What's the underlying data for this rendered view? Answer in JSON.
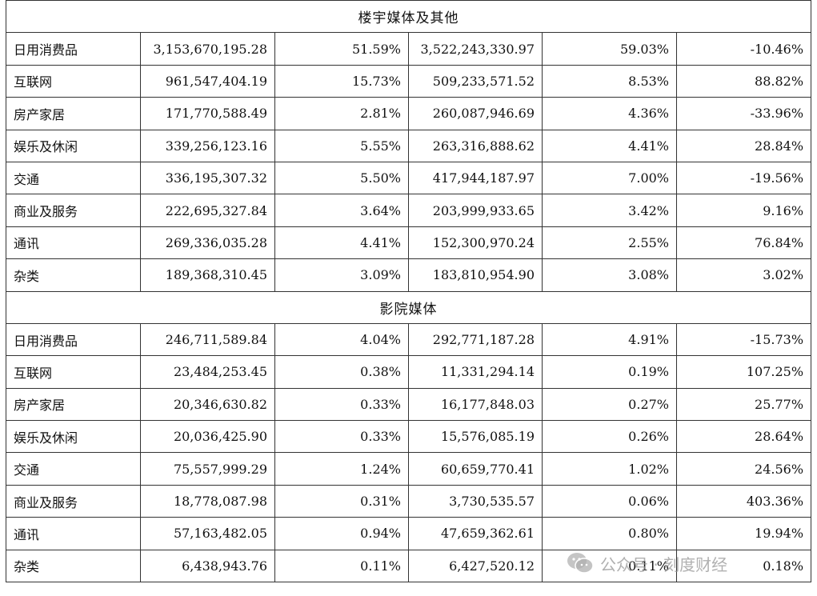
{
  "sections": [
    {
      "title": "楼宇媒体及其他",
      "rows": [
        {
          "category": "日用消费品",
          "amount_current": "3,153,670,195.28",
          "share_current": "51.59%",
          "amount_prior": "3,522,243,330.97",
          "share_prior": "59.03%",
          "change": "-10.46%"
        },
        {
          "category": "互联网",
          "amount_current": "961,547,404.19",
          "share_current": "15.73%",
          "amount_prior": "509,233,571.52",
          "share_prior": "8.53%",
          "change": "88.82%"
        },
        {
          "category": "房产家居",
          "amount_current": "171,770,588.49",
          "share_current": "2.81%",
          "amount_prior": "260,087,946.69",
          "share_prior": "4.36%",
          "change": "-33.96%"
        },
        {
          "category": "娱乐及休闲",
          "amount_current": "339,256,123.16",
          "share_current": "5.55%",
          "amount_prior": "263,316,888.62",
          "share_prior": "4.41%",
          "change": "28.84%"
        },
        {
          "category": "交通",
          "amount_current": "336,195,307.32",
          "share_current": "5.50%",
          "amount_prior": "417,944,187.97",
          "share_prior": "7.00%",
          "change": "-19.56%"
        },
        {
          "category": "商业及服务",
          "amount_current": "222,695,327.84",
          "share_current": "3.64%",
          "amount_prior": "203,999,933.65",
          "share_prior": "3.42%",
          "change": "9.16%"
        },
        {
          "category": "通讯",
          "amount_current": "269,336,035.28",
          "share_current": "4.41%",
          "amount_prior": "152,300,970.24",
          "share_prior": "2.55%",
          "change": "76.84%"
        },
        {
          "category": "杂类",
          "amount_current": "189,368,310.45",
          "share_current": "3.09%",
          "amount_prior": "183,810,954.90",
          "share_prior": "3.08%",
          "change": "3.02%"
        }
      ]
    },
    {
      "title": "影院媒体",
      "rows": [
        {
          "category": "日用消费品",
          "amount_current": "246,711,589.84",
          "share_current": "4.04%",
          "amount_prior": "292,771,187.28",
          "share_prior": "4.91%",
          "change": "-15.73%"
        },
        {
          "category": "互联网",
          "amount_current": "23,484,253.45",
          "share_current": "0.38%",
          "amount_prior": "11,331,294.14",
          "share_prior": "0.19%",
          "change": "107.25%"
        },
        {
          "category": "房产家居",
          "amount_current": "20,346,630.82",
          "share_current": "0.33%",
          "amount_prior": "16,177,848.03",
          "share_prior": "0.27%",
          "change": "25.77%"
        },
        {
          "category": "娱乐及休闲",
          "amount_current": "20,036,425.90",
          "share_current": "0.33%",
          "amount_prior": "15,576,085.19",
          "share_prior": "0.26%",
          "change": "28.64%"
        },
        {
          "category": "交通",
          "amount_current": "75,557,999.29",
          "share_current": "1.24%",
          "amount_prior": "60,659,770.41",
          "share_prior": "1.02%",
          "change": "24.56%"
        },
        {
          "category": "商业及服务",
          "amount_current": "18,778,087.98",
          "share_current": "0.31%",
          "amount_prior": "3,730,535.57",
          "share_prior": "0.06%",
          "change": "403.36%"
        },
        {
          "category": "通讯",
          "amount_current": "57,163,482.05",
          "share_current": "0.94%",
          "amount_prior": "47,659,362.61",
          "share_prior": "0.80%",
          "change": "19.94%"
        },
        {
          "category": "杂类",
          "amount_current": "6,438,943.76",
          "share_current": "0.11%",
          "amount_prior": "6,427,520.12",
          "share_prior": "0.11%",
          "change": "0.18%"
        }
      ]
    }
  ],
  "watermark": {
    "text": "公众号 · 刻度财经",
    "icon": "wechat-icon"
  }
}
